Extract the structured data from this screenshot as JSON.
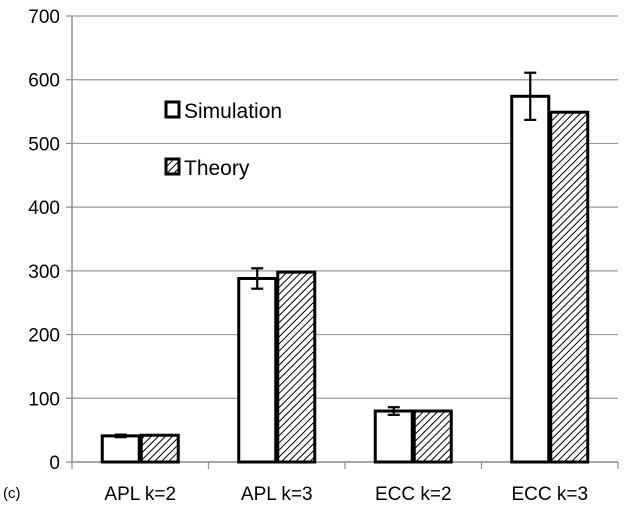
{
  "chart_data": {
    "type": "bar",
    "panel_label": "(c)",
    "categories": [
      "APL k=2",
      "APL k=3",
      "ECC k=2",
      "ECC k=3"
    ],
    "series": [
      {
        "name": "Simulation",
        "values": [
          41,
          288,
          80,
          574
        ],
        "error": [
          2,
          16,
          6,
          37
        ],
        "fill": "#ffffff",
        "pattern": "none"
      },
      {
        "name": "Theory",
        "values": [
          42,
          298,
          80,
          549
        ],
        "fill": "#ffffff",
        "pattern": "diagonal-hatch"
      }
    ],
    "yticks": [
      0,
      100,
      200,
      300,
      400,
      500,
      600,
      700
    ],
    "ylim": [
      0,
      700
    ],
    "grid": true,
    "legend": "upper-left inside plot",
    "colors": {
      "bar_stroke": "#000000",
      "grid": "#9a9a9a",
      "axis": "#8c8c8c",
      "hatch": "#000000"
    }
  }
}
